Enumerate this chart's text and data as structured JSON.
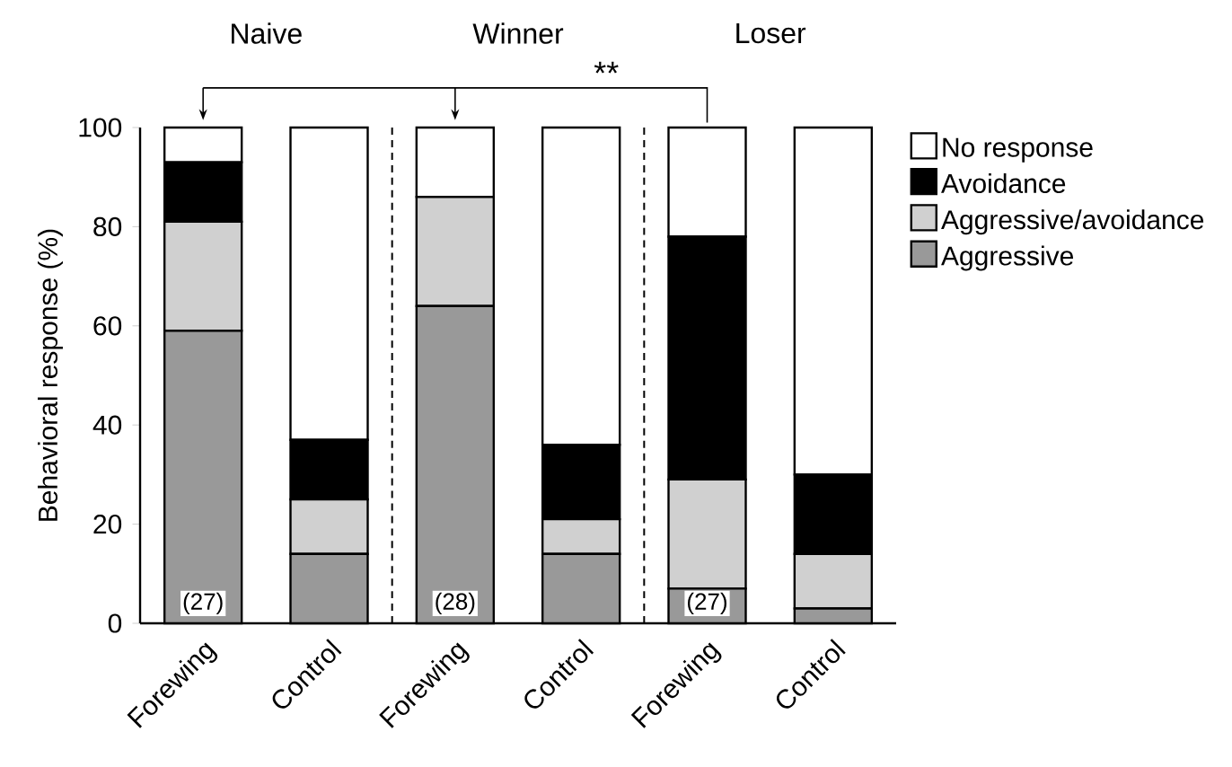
{
  "chart_data": {
    "type": "bar",
    "stacked": true,
    "ylabel": "Behavioral response (%)",
    "categories": [
      "Forewing",
      "Control",
      "Forewing",
      "Control",
      "Forewing",
      "Control"
    ],
    "series": [
      {
        "name": "Aggressive",
        "color": "#999999",
        "values": [
          59,
          14,
          64,
          14,
          7,
          3
        ]
      },
      {
        "name": "Aggressive/avoidance",
        "color": "#d0d0d0",
        "values": [
          22,
          11,
          22,
          7,
          22,
          11
        ]
      },
      {
        "name": "Avoidance",
        "color": "#000000",
        "values": [
          12,
          12,
          0,
          15,
          49,
          16
        ]
      },
      {
        "name": "No response",
        "color": "#ffffff",
        "values": [
          7,
          63,
          14,
          64,
          22,
          70
        ]
      }
    ],
    "ylim": [
      0,
      100
    ],
    "yticks": [
      0,
      20,
      40,
      60,
      80,
      100
    ],
    "legend": "right",
    "annotations": [
      "Naive",
      "Winner",
      "Loser",
      "**",
      "(27)",
      "(28)",
      "(27)"
    ]
  }
}
